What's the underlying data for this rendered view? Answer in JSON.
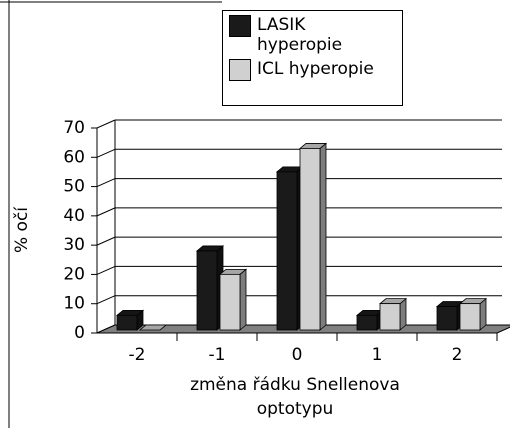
{
  "chart_data": {
    "type": "bar3d",
    "categories": [
      "-2",
      "-1",
      "0",
      "1",
      "2"
    ],
    "series": [
      {
        "name": "LASIK hyperopie",
        "color": "#1a1a1a",
        "values": [
          5,
          27,
          54,
          5,
          8
        ]
      },
      {
        "name": "ICL hyperopie",
        "color": "#d0d0d0",
        "values": [
          0,
          19,
          62,
          9,
          9
        ]
      }
    ],
    "ylabel": "% očí",
    "xlabel": "změna řádku Snellenova optotypu",
    "ylim": [
      0,
      70
    ],
    "yticks": [
      0,
      10,
      20,
      30,
      40,
      50,
      60,
      70
    ],
    "grid": true
  }
}
